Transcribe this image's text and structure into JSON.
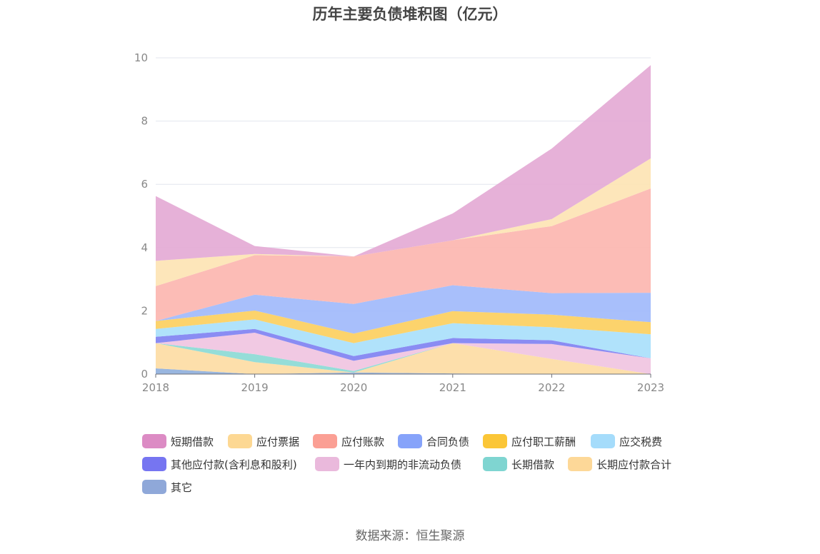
{
  "chart_data": {
    "type": "area",
    "stacked": true,
    "title": "历年主要负债堆积图（亿元）",
    "xlabel": "",
    "ylabel": "",
    "x": [
      "2018",
      "2019",
      "2020",
      "2021",
      "2022",
      "2023"
    ],
    "ylim": [
      0,
      10
    ],
    "yticks": [
      0,
      2,
      4,
      6,
      8,
      10
    ],
    "grid": true,
    "legend_position": "bottom",
    "series": [
      {
        "name": "其它",
        "color": "#8eaedb",
        "values": [
          0.18,
          0.0,
          0.05,
          0.02,
          0.0,
          0.0
        ]
      },
      {
        "name": "长期应付款合计",
        "color": "#fddba2",
        "values": [
          0.8,
          0.38,
          0.0,
          0.96,
          0.48,
          0.0
        ]
      },
      {
        "name": "长期借款",
        "color": "#8ad9d4",
        "values": [
          0.0,
          0.25,
          0.05,
          0.0,
          0.0,
          0.0
        ]
      },
      {
        "name": "一年内到期的非流动负债",
        "color": "#efc3e0",
        "values": [
          0.0,
          0.68,
          0.32,
          0.0,
          0.47,
          0.5
        ]
      },
      {
        "name": "其他应付款(含利息和股利)",
        "color": "#7d7ff2",
        "values": [
          0.2,
          0.12,
          0.15,
          0.16,
          0.12,
          0.0
        ]
      },
      {
        "name": "应交税费",
        "color": "#a7dffb",
        "values": [
          0.25,
          0.3,
          0.41,
          0.47,
          0.41,
          0.76
        ]
      },
      {
        "name": "应付职工薪酬",
        "color": "#fcce5c",
        "values": [
          0.25,
          0.28,
          0.3,
          0.38,
          0.4,
          0.38
        ]
      },
      {
        "name": "合同负债",
        "color": "#9fb8fb",
        "values": [
          0.0,
          0.5,
          0.94,
          0.82,
          0.68,
          0.93
        ]
      },
      {
        "name": "应付账款",
        "color": "#fcb5ae",
        "values": [
          1.1,
          1.25,
          1.5,
          1.42,
          2.12,
          3.3
        ]
      },
      {
        "name": "应付票据",
        "color": "#fde3b2",
        "values": [
          0.8,
          0.04,
          0.0,
          0.0,
          0.22,
          0.95
        ]
      },
      {
        "name": "短期借款",
        "color": "#e3a9d4",
        "values": [
          2.05,
          0.25,
          0.0,
          0.85,
          2.23,
          2.95
        ]
      }
    ]
  },
  "legend": [
    {
      "label": "短期借款",
      "color": "#dc8bc4"
    },
    {
      "label": "应付票据",
      "color": "#fdd893"
    },
    {
      "label": "应付账款",
      "color": "#fb9f94"
    },
    {
      "label": "合同负债",
      "color": "#86a3fa"
    },
    {
      "label": "应付职工薪酬",
      "color": "#fbc637"
    },
    {
      "label": "应交税费",
      "color": "#a5dcfb"
    },
    {
      "label": "其他应付款(含利息和股利)",
      "color": "#7675f1"
    },
    {
      "label": "一年内到期的非流动负债",
      "color": "#eab9dc"
    },
    {
      "label": "长期借款",
      "color": "#7fd5d1"
    },
    {
      "label": "长期应付款合计",
      "color": "#fdd898"
    },
    {
      "label": "其它",
      "color": "#8fa8d9"
    }
  ],
  "footer": {
    "source": "数据来源：恒生聚源"
  }
}
